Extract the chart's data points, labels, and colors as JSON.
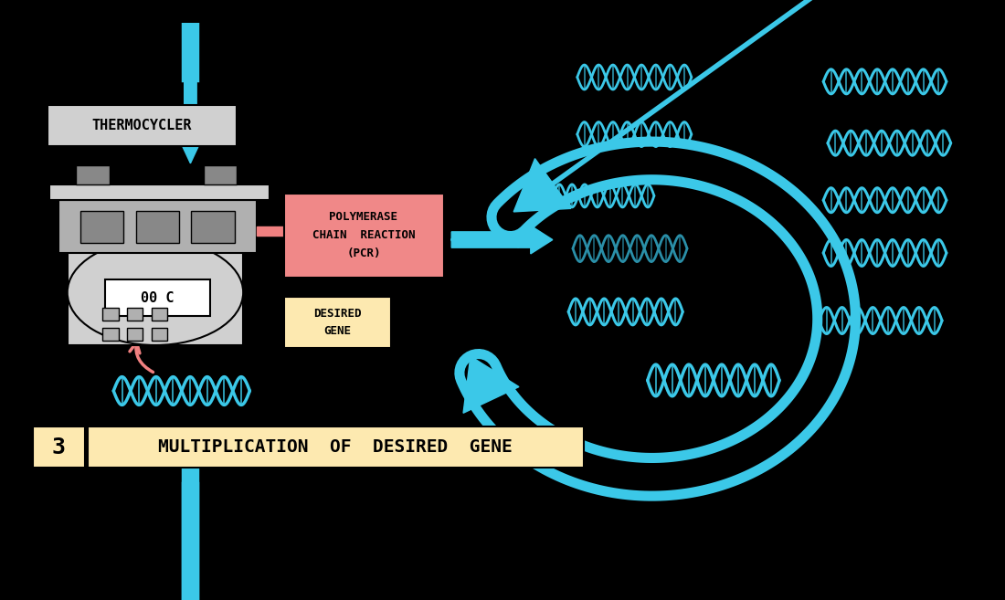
{
  "bg_color": "#000000",
  "title_bg": "#fde9b0",
  "title_number_bg": "#fde9b0",
  "title_text": "MULTIPLICATION  OF  DESIRED  GENE",
  "title_number": "3",
  "cyan": "#3bc8e8",
  "pink": "#f08080",
  "pink_box": "#f08090",
  "light_gray": "#d0d0d0",
  "mid_gray": "#b0b0b0",
  "dark_gray": "#888888",
  "desired_gene_text": "DESIRED\nGENE",
  "pcr_text": "POLYMERASE\nCHAIN  REACTION\n(PCR)",
  "thermocycler_text": "THERMOCYCLER"
}
